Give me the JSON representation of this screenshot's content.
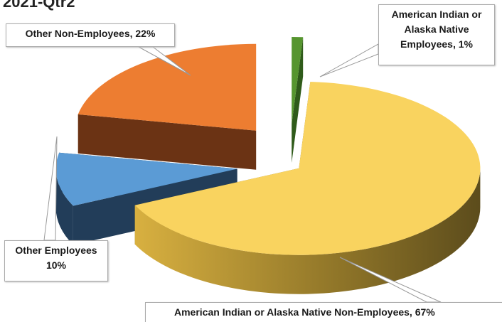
{
  "chart_data": {
    "type": "pie3d",
    "title": "2021-Qtr2",
    "values": [
      1,
      67,
      10,
      22
    ],
    "value_labels": [
      "American Indian or Alaska Native Employees, 1%",
      "American Indian or Alaska Native Non-Employees, 67%",
      "Other Employees\n10%",
      "Other Non-Employees, 22%"
    ],
    "colors": [
      "#56952f",
      "#f9d35f",
      "#5b9bd5",
      "#ed7d31"
    ],
    "side_colors": [
      "#2f5b1a",
      "#7a6424",
      "#223d59",
      "#6b3314"
    ]
  }
}
